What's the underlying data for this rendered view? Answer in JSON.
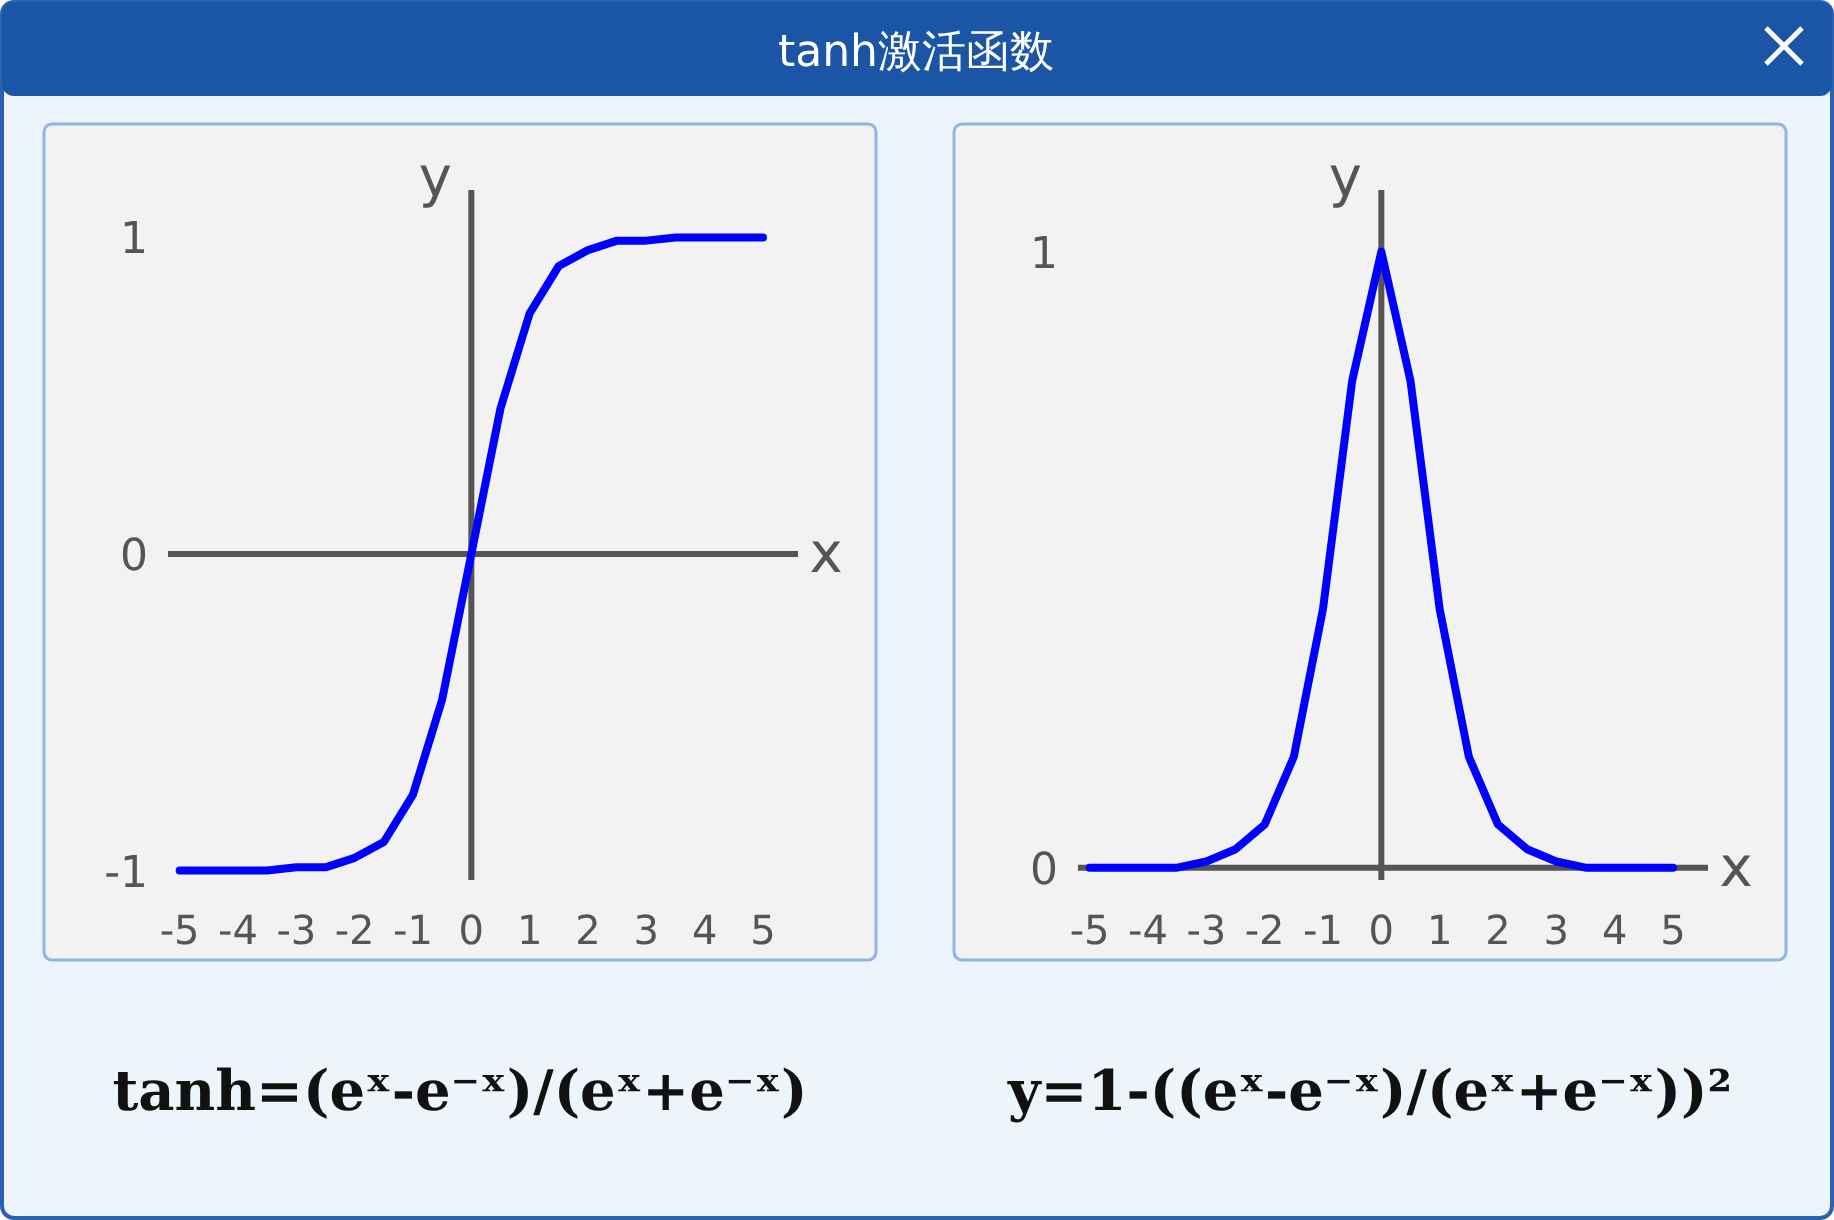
{
  "chart_data": [
    {
      "type": "line",
      "title": "tanh激活函数",
      "xlabel": "x",
      "ylabel": "y",
      "x": [
        -5,
        -4.5,
        -4,
        -3.5,
        -3,
        -2.5,
        -2,
        -1.5,
        -1,
        -0.5,
        0,
        0.5,
        1,
        1.5,
        2,
        2.5,
        3,
        3.5,
        4,
        4.5,
        5
      ],
      "series": [
        {
          "color": "#0000ff",
          "values": [
            -1,
            -1,
            -1,
            -1,
            -0.99,
            -0.99,
            -0.96,
            -0.91,
            -0.76,
            -0.46,
            0,
            0.46,
            0.76,
            0.91,
            0.96,
            0.99,
            0.99,
            1,
            1,
            1,
            1
          ]
        }
      ],
      "xlim": [
        -5.2,
        5.6
      ],
      "ylim": [
        -1.03,
        1.15
      ],
      "xticks": [
        -5,
        -4,
        -3,
        -2,
        -1,
        0,
        1,
        2,
        3,
        4,
        5
      ],
      "yticks": [
        -1,
        0,
        1
      ],
      "annotations": [
        "tanh=(eˣ-e⁻ˣ)/(eˣ+e⁻ˣ)"
      ]
    },
    {
      "type": "line",
      "xlabel": "x",
      "ylabel": "y",
      "x": [
        -5,
        -4.5,
        -4,
        -3.5,
        -3,
        -2.5,
        -2,
        -1.5,
        -1,
        -0.5,
        0,
        0.5,
        1,
        1.5,
        2,
        2.5,
        3,
        3.5,
        4,
        4.5,
        5
      ],
      "series": [
        {
          "color": "#0000ff",
          "values": [
            0,
            0,
            0,
            0,
            0.01,
            0.03,
            0.07,
            0.18,
            0.42,
            0.79,
            1,
            0.79,
            0.42,
            0.18,
            0.07,
            0.03,
            0.01,
            0,
            0,
            0,
            0
          ]
        }
      ],
      "xlim": [
        -5.2,
        5.6
      ],
      "ylim": [
        -0.02,
        1.1
      ],
      "xticks": [
        -5,
        -4,
        -3,
        -2,
        -1,
        0,
        1,
        2,
        3,
        4,
        5
      ],
      "yticks": [
        0,
        1
      ],
      "annotations": [
        "y=1-((eˣ-e⁻ˣ)/(eˣ+e⁻ˣ))²"
      ]
    }
  ]
}
